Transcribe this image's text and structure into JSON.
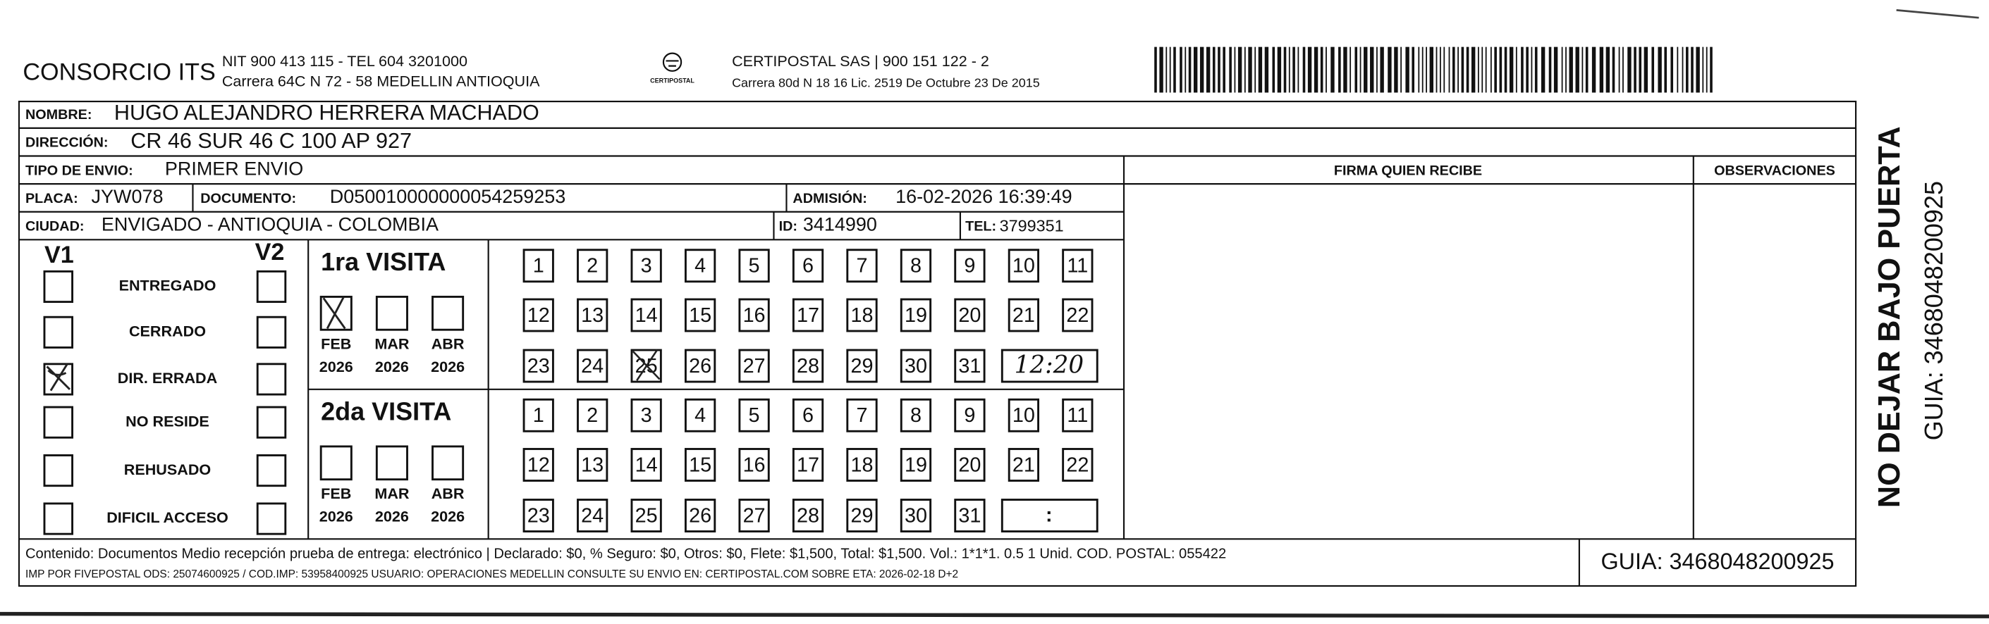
{
  "header": {
    "company": "CONSORCIO ITS",
    "nit_line": "NIT 900 413 115 - TEL 604 3201000",
    "address_line": "Carrera 64C N 72 - 58 MEDELLIN ANTIOQUIA",
    "logo_text": "CERTIPOSTAL",
    "courier_name": "CERTIPOSTAL SAS | 900 151 122 - 2",
    "courier_license": "Carrera 80d N 18 16  Lic. 2519 De Octubre 23 De 2015"
  },
  "recipient": {
    "name_label": "NOMBRE:",
    "name": "HUGO ALEJANDRO HERRERA MACHADO",
    "address_label": "DIRECCIÓN:",
    "address": "CR 46 SUR 46 C 100 AP 927",
    "shipping_type_label": "TIPO DE ENVIO:",
    "shipping_type": "PRIMER ENVIO",
    "plate_label": "PLACA:",
    "plate": "JYW078",
    "document_label": "DOCUMENTO:",
    "document": "D050010000000054259253",
    "admission_label": "ADMISIÓN:",
    "admission": "16-02-2026 16:39:49",
    "city_label": "CIUDAD:",
    "city": "ENVIGADO - ANTIOQUIA - COLOMBIA",
    "id_label": "ID:",
    "id": "3414990",
    "tel_label": "TEL:",
    "tel": "3799351"
  },
  "columns": {
    "signature": "FIRMA QUIEN RECIBE",
    "observations": "OBSERVACIONES"
  },
  "statuses": {
    "v1_label": "V1",
    "v2_label": "V2",
    "items": [
      "ENTREGADO",
      "CERRADO",
      "DIR. ERRADA",
      "NO RESIDE",
      "REHUSADO",
      "DIFICIL ACCESO"
    ]
  },
  "visits": [
    {
      "title": "1ra VISITA",
      "months": [
        {
          "month": "FEB",
          "year": "2026"
        },
        {
          "month": "MAR",
          "year": "2026"
        },
        {
          "month": "ABR",
          "year": "2026"
        }
      ],
      "days": [
        "1",
        "2",
        "3",
        "4",
        "5",
        "6",
        "7",
        "8",
        "9",
        "10",
        "11",
        "12",
        "13",
        "14",
        "15",
        "16",
        "17",
        "18",
        "19",
        "20",
        "21",
        "22",
        "23",
        "24",
        "25",
        "26",
        "27",
        "28",
        "29",
        "30",
        "31"
      ],
      "time_box": "12:20"
    },
    {
      "title": "2da VISITA",
      "months": [
        {
          "month": "FEB",
          "year": "2026"
        },
        {
          "month": "MAR",
          "year": "2026"
        },
        {
          "month": "ABR",
          "year": "2026"
        }
      ],
      "days": [
        "1",
        "2",
        "3",
        "4",
        "5",
        "6",
        "7",
        "8",
        "9",
        "10",
        "11",
        "12",
        "13",
        "14",
        "15",
        "16",
        "17",
        "18",
        "19",
        "20",
        "21",
        "22",
        "23",
        "24",
        "25",
        "26",
        "27",
        "28",
        "29",
        "30",
        "31"
      ],
      "time_box": ":"
    }
  ],
  "footer": {
    "contents": "Contenido: Documentos Medio recepción prueba de entrega: electrónico | Declarado: $0, % Seguro: $0, Otros: $0, Flete: $1,500, Total: $1,500. Vol.: 1*1*1. 0.5  1 Unid. COD. POSTAL: 055422",
    "imp": "IMP POR FIVEPOSTAL ODS: 25074600925 / COD.IMP: 53958400925 USUARIO: OPERACIONES MEDELLIN CONSULTE SU ENVIO EN: CERTIPOSTAL.COM SOBRE ETA: 2026-02-18 D+2",
    "guide": "GUIA: 3468048200925"
  },
  "side": {
    "warning": "NO DEJAR BAJO PUERTA",
    "guide": "GUIA: 3468048200925"
  }
}
